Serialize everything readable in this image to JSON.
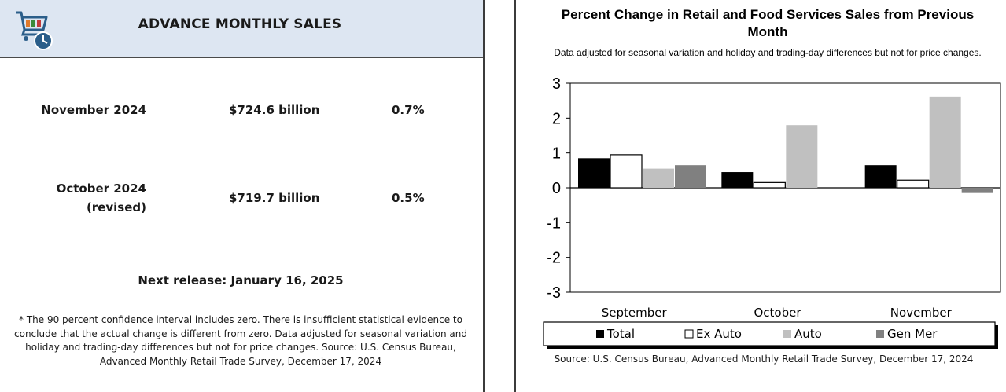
{
  "left_panel": {
    "logo": "shopping-cart-clock-icon",
    "title": "ADVANCE MONTHLY SALES",
    "rows": [
      {
        "label": "November 2024",
        "label_line2": "",
        "value": "$724.6 billion",
        "change": "0.7%"
      },
      {
        "label": "October 2024",
        "label_line2": "(revised)",
        "value": "$719.7 billion",
        "change": "0.5%"
      }
    ],
    "next_release": "Next release: January 16, 2025",
    "footnote": "* The 90 percent confidence interval includes zero. There is insufficient statistical evidence to conclude that the actual change is different from zero. Data adjusted for seasonal variation and holiday and trading-day differences but not for price changes. Source: U.S. Census Bureau, Advanced Monthly Retail Trade Survey, December 17, 2024"
  },
  "colors": {
    "header_bg": "#dde6f2",
    "total": "#000000",
    "ex_auto": "#ffffff",
    "auto": "#c0c0c0",
    "gen_mer": "#808080"
  },
  "chart_data": {
    "type": "bar",
    "title": "Percent Change in Retail and Food Services Sales from Previous Month",
    "subtitle": "Data adjusted for seasonal variation and holiday and trading-day differences but not for price changes.",
    "categories": [
      "September",
      "October",
      "November"
    ],
    "series": [
      {
        "name": "Total",
        "values": [
          0.85,
          0.45,
          0.65
        ]
      },
      {
        "name": "Ex Auto",
        "values": [
          0.95,
          0.15,
          0.22
        ]
      },
      {
        "name": "Auto",
        "values": [
          0.55,
          1.8,
          2.62
        ]
      },
      {
        "name": "Gen Mer",
        "values": [
          0.65,
          null,
          -0.15
        ]
      }
    ],
    "ylim": [
      -3,
      3
    ],
    "yticks": [
      "3",
      "2",
      "1",
      "0",
      "-1",
      "-2",
      "-3"
    ],
    "xlabel": "",
    "ylabel": "",
    "grid": false,
    "legend": "bottom",
    "source": "Source: U.S. Census Bureau, Advanced Monthly Retail Trade Survey, December 17, 2024"
  }
}
